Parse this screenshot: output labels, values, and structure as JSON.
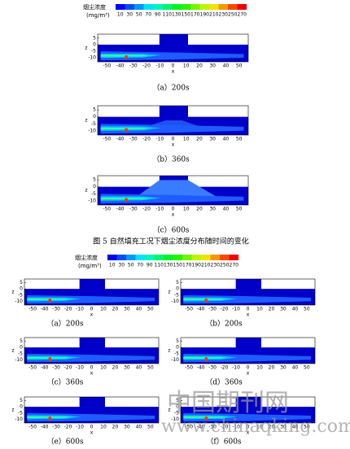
{
  "figure5": {
    "legend": {
      "title": "烟尘浓度",
      "unit": "(mg/m³)",
      "levels": [
        10,
        30,
        50,
        70,
        90,
        110,
        130,
        150,
        170,
        190,
        210,
        230,
        250,
        270
      ]
    },
    "panels": [
      {
        "caption": "（a）200s"
      },
      {
        "caption": "（b）360s"
      },
      {
        "caption": "（c）600s"
      }
    ],
    "caption": "图 5  自然填充工况下烟尘浓度分布随时间的变化"
  },
  "axes": {
    "xlabel": "x",
    "zlabel": "z",
    "xlim": [
      -57,
      57
    ],
    "zlim": [
      -13,
      8
    ],
    "xticks": [
      -50,
      -40,
      -30,
      -20,
      -10,
      0,
      10,
      20,
      30,
      40,
      50
    ],
    "zticks": [
      5,
      0,
      -5,
      -10
    ]
  },
  "figure6": {
    "legend": {
      "title": "烟尘浓度",
      "unit": "(mg/m³)",
      "levels": [
        10,
        30,
        50,
        70,
        90,
        110,
        130,
        150,
        170,
        190,
        210,
        230,
        250,
        270
      ]
    },
    "panels": [
      {
        "caption": "（a）200s"
      },
      {
        "caption": "（b）200s"
      },
      {
        "caption": "（c）360s"
      },
      {
        "caption": "（d）360s"
      },
      {
        "caption": "（e）600s"
      },
      {
        "caption": "（f）600s"
      }
    ]
  },
  "watermark": {
    "name": "中国期刊网",
    "url": "www.chinaqking.com"
  }
}
